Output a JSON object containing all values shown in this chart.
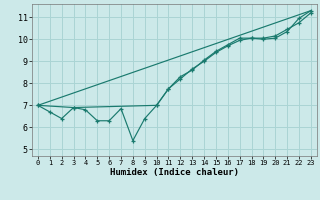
{
  "xlabel": "Humidex (Indice chaleur)",
  "x_ticks": [
    0,
    1,
    2,
    3,
    4,
    5,
    6,
    7,
    8,
    9,
    10,
    11,
    12,
    13,
    14,
    15,
    16,
    17,
    18,
    19,
    20,
    21,
    22,
    23
  ],
  "y_ticks": [
    5,
    6,
    7,
    8,
    9,
    10,
    11
  ],
  "xlim": [
    -0.5,
    23.5
  ],
  "ylim": [
    4.7,
    11.6
  ],
  "bg_color": "#cce9e9",
  "grid_color": "#aad4d4",
  "line_color": "#1a7a6e",
  "line1_x": [
    0,
    1,
    2,
    3,
    4,
    5,
    6,
    7,
    8,
    9,
    10,
    11,
    12,
    13,
    14,
    15,
    16,
    17,
    18,
    19,
    20,
    21,
    22,
    23
  ],
  "line1_y": [
    7.0,
    6.7,
    6.4,
    6.9,
    6.8,
    6.3,
    6.3,
    6.85,
    5.4,
    6.4,
    7.0,
    7.75,
    8.3,
    8.6,
    9.05,
    9.45,
    9.75,
    10.05,
    10.05,
    10.0,
    10.05,
    10.35,
    10.95,
    11.3
  ],
  "line2_x": [
    0,
    3,
    10,
    11,
    12,
    13,
    14,
    15,
    16,
    17,
    18,
    19,
    20,
    21,
    22,
    23
  ],
  "line2_y": [
    7.0,
    6.9,
    7.0,
    7.75,
    8.2,
    8.65,
    9.0,
    9.4,
    9.7,
    9.95,
    10.05,
    10.05,
    10.15,
    10.45,
    10.75,
    11.2
  ],
  "line3_x": [
    0,
    23
  ],
  "line3_y": [
    7.0,
    11.3
  ]
}
